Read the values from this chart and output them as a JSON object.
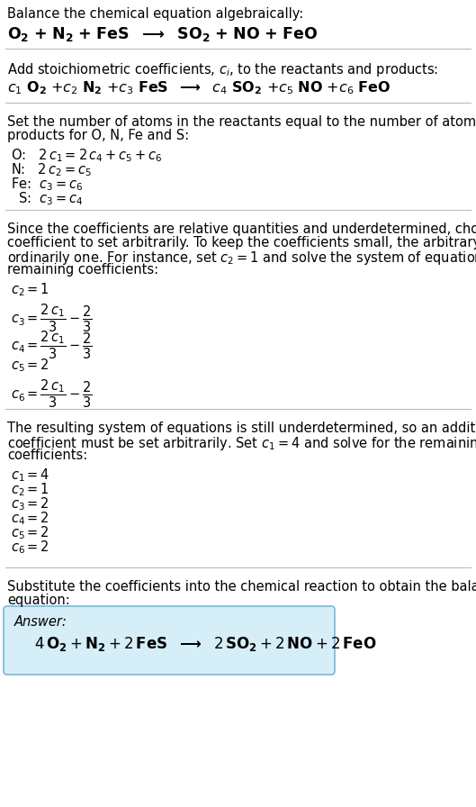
{
  "bg_color": "#ffffff",
  "text_color": "#000000",
  "answer_box_color": "#d6eef8",
  "answer_box_border": "#7ab8d9",
  "figsize": [
    5.29,
    8.96
  ],
  "dpi": 100
}
